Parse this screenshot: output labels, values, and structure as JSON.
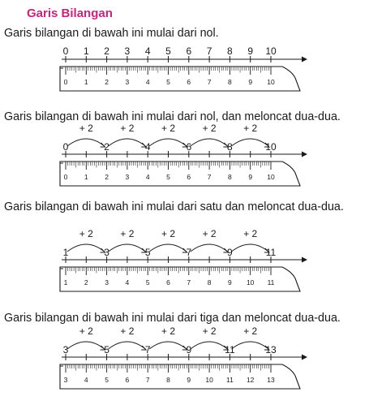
{
  "title": "Garis Bilangan",
  "sections": [
    {
      "text": "Garis bilangan di bawah ini mulai dari nol.",
      "line_labels": [
        "0",
        "1",
        "2",
        "3",
        "4",
        "5",
        "6",
        "7",
        "8",
        "9",
        "10"
      ],
      "hops": [],
      "ruler_labels": [
        "0",
        "1",
        "2",
        "3",
        "4",
        "5",
        "6",
        "7",
        "8",
        "9",
        "10"
      ]
    },
    {
      "text": "Garis bilangan di bawah ini mulai dari nol, dan meloncat dua-dua.",
      "line_labels": [
        "0",
        "",
        "2",
        "",
        "4",
        "",
        "6",
        "",
        "8",
        "",
        "10"
      ],
      "hops": [
        "+ 2",
        "+ 2",
        "+ 2",
        "+ 2",
        "+ 2"
      ],
      "ruler_labels": [
        "0",
        "1",
        "2",
        "3",
        "4",
        "5",
        "6",
        "7",
        "8",
        "9",
        "10"
      ]
    },
    {
      "text": "Garis bilangan di bawah ini mulai dari satu dan meloncat dua-dua.",
      "line_labels": [
        "1",
        "",
        "3",
        "",
        "5",
        "",
        "7",
        "",
        "9",
        "",
        "11"
      ],
      "hops": [
        "+ 2",
        "+ 2",
        "+ 2",
        "+ 2",
        "+ 2"
      ],
      "ruler_labels": [
        "1",
        "2",
        "3",
        "4",
        "5",
        "6",
        "7",
        "8",
        "9",
        "10",
        "11"
      ]
    },
    {
      "text": "Garis bilangan di bawah ini mulai dari tiga dan meloncat dua-dua.",
      "line_labels": [
        "3",
        "",
        "5",
        "",
        "7",
        "",
        "9",
        "",
        "11",
        "",
        "13"
      ],
      "hops": [
        "+ 2",
        "+ 2",
        "+ 2",
        "+ 2",
        "+ 2"
      ],
      "ruler_labels": [
        "3",
        "4",
        "5",
        "6",
        "7",
        "8",
        "9",
        "10",
        "11",
        "12",
        "13"
      ]
    }
  ]
}
